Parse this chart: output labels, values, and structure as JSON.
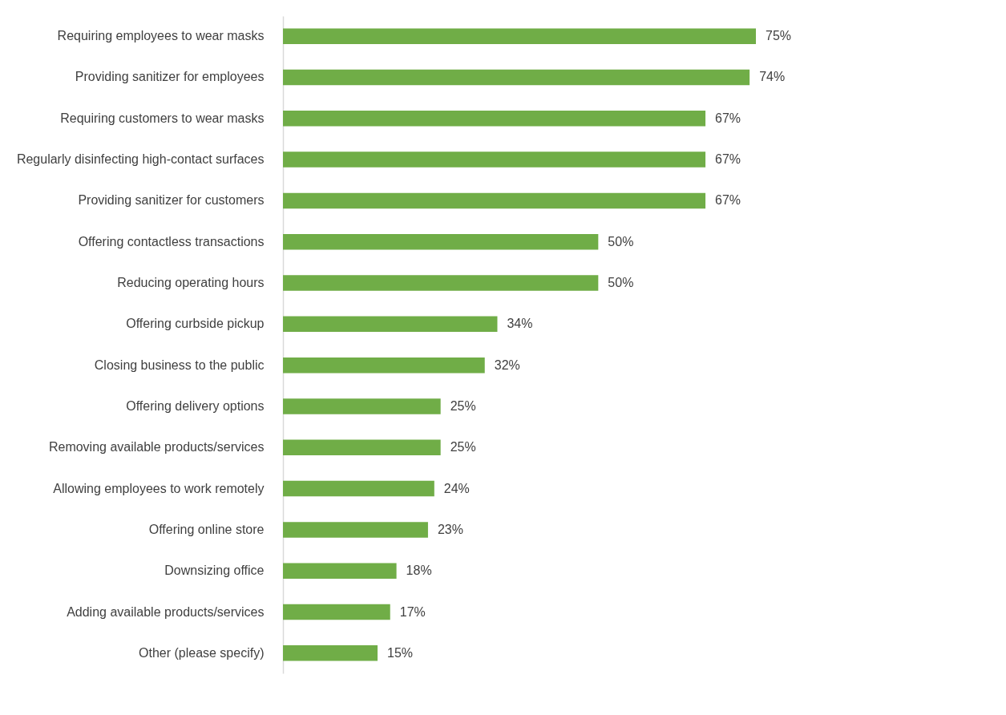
{
  "chart_data": {
    "type": "bar",
    "orientation": "horizontal",
    "categories": [
      "Requiring employees to wear masks",
      "Providing sanitizer for employees",
      "Requiring customers to wear masks",
      "Regularly disinfecting high-contact surfaces",
      "Providing sanitizer for customers",
      "Offering contactless transactions",
      "Reducing operating hours",
      "Offering curbside pickup",
      "Closing business to the public",
      "Offering delivery options",
      "Removing available products/services",
      "Allowing employees to work remotely",
      "Offering online store",
      "Downsizing office",
      "Adding available products/services",
      "Other (please specify)"
    ],
    "values": [
      75,
      74,
      67,
      67,
      67,
      50,
      50,
      34,
      32,
      25,
      25,
      24,
      23,
      18,
      17,
      15
    ],
    "value_labels": [
      "75%",
      "74%",
      "67%",
      "67%",
      "67%",
      "50%",
      "50%",
      "34%",
      "32%",
      "25%",
      "25%",
      "24%",
      "23%",
      "18%",
      "17%",
      "15%"
    ],
    "color": "#70ad47",
    "tick_labels": "y"
  }
}
